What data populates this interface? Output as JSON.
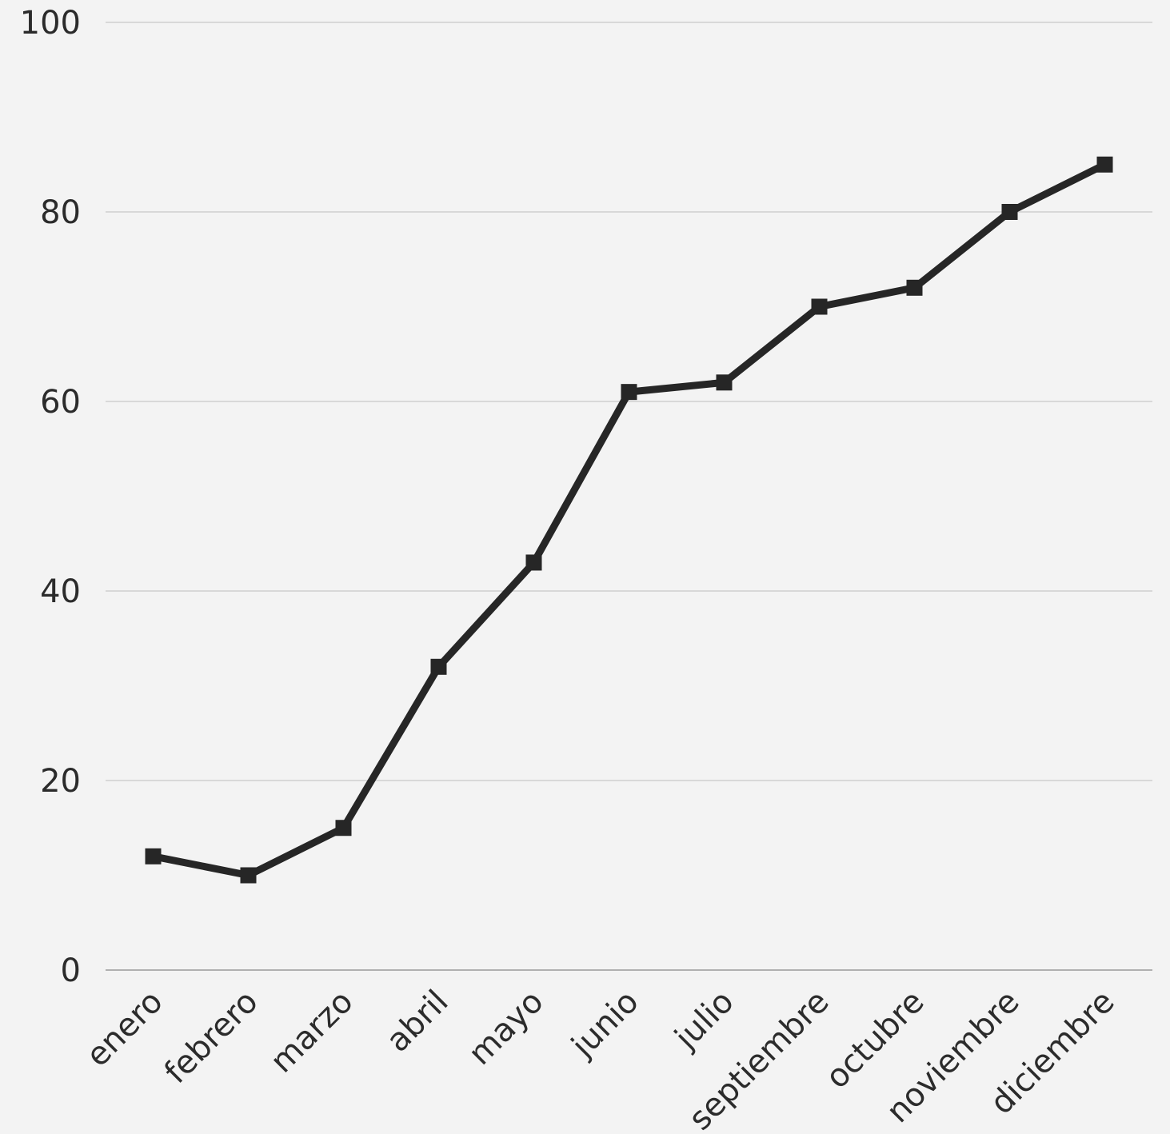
{
  "chart_data": {
    "type": "line",
    "categories": [
      "enero",
      "febrero",
      "marzo",
      "abril",
      "mayo",
      "junio",
      "julio",
      "septiembre",
      "octubre",
      "noviembre",
      "diciembre"
    ],
    "series": [
      {
        "values": [
          12,
          10,
          15,
          32,
          43,
          61,
          62,
          70,
          72,
          80,
          85
        ]
      }
    ],
    "ylim": [
      0,
      100
    ],
    "yticks": [
      0,
      20,
      40,
      60,
      80,
      100
    ],
    "grid": true,
    "legend": "none",
    "colors": {
      "line": "#262626",
      "grid": "#cfcfcf",
      "background": "#f3f3f3"
    },
    "marker": "square"
  }
}
